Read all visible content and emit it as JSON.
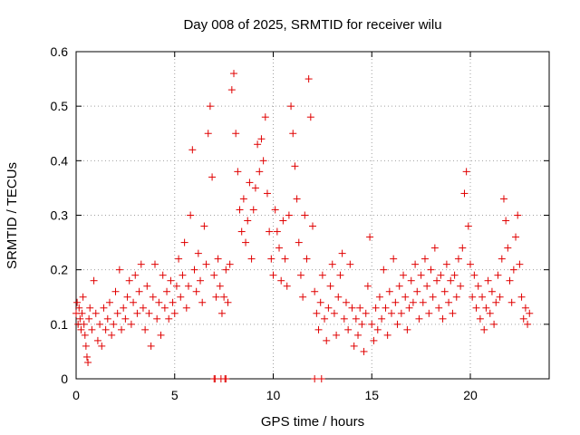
{
  "chart_data": {
    "type": "scatter",
    "title": "Day 008 of 2025, SRMTID for receiver wilu",
    "xlabel": "GPS time / hours",
    "ylabel": "SRMTID / TECUs",
    "xlim": [
      0,
      24
    ],
    "ylim": [
      0,
      0.6
    ],
    "xticks": [
      0,
      5,
      10,
      15,
      20
    ],
    "xtick_labels": [
      "0",
      "5",
      "10",
      "15",
      "20"
    ],
    "yticks": [
      0,
      0.1,
      0.2,
      0.3,
      0.4,
      0.5,
      0.6
    ],
    "ytick_labels": [
      "0",
      "0.1",
      "0.2",
      "0.3",
      "0.4",
      "0.5",
      "0.6"
    ],
    "grid": true,
    "marker": "+",
    "color": "#e00000",
    "series": [
      {
        "name": "SRMTID",
        "points": [
          [
            0.0,
            0.12
          ],
          [
            0.05,
            0.14
          ],
          [
            0.1,
            0.1
          ],
          [
            0.15,
            0.13
          ],
          [
            0.2,
            0.11
          ],
          [
            0.25,
            0.09
          ],
          [
            0.3,
            0.12
          ],
          [
            0.35,
            0.15
          ],
          [
            0.4,
            0.1
          ],
          [
            0.45,
            0.08
          ],
          [
            0.5,
            0.06
          ],
          [
            0.55,
            0.04
          ],
          [
            0.6,
            0.03
          ],
          [
            0.65,
            0.11
          ],
          [
            0.7,
            0.13
          ],
          [
            0.8,
            0.09
          ],
          [
            0.9,
            0.18
          ],
          [
            1.0,
            0.12
          ],
          [
            1.1,
            0.07
          ],
          [
            1.2,
            0.1
          ],
          [
            1.3,
            0.06
          ],
          [
            1.4,
            0.13
          ],
          [
            1.5,
            0.09
          ],
          [
            1.6,
            0.11
          ],
          [
            1.7,
            0.14
          ],
          [
            1.8,
            0.08
          ],
          [
            1.9,
            0.1
          ],
          [
            2.0,
            0.16
          ],
          [
            2.1,
            0.12
          ],
          [
            2.2,
            0.2
          ],
          [
            2.3,
            0.09
          ],
          [
            2.4,
            0.13
          ],
          [
            2.5,
            0.11
          ],
          [
            2.6,
            0.15
          ],
          [
            2.7,
            0.18
          ],
          [
            2.8,
            0.1
          ],
          [
            2.9,
            0.14
          ],
          [
            3.0,
            0.19
          ],
          [
            3.1,
            0.12
          ],
          [
            3.2,
            0.16
          ],
          [
            3.3,
            0.21
          ],
          [
            3.4,
            0.13
          ],
          [
            3.5,
            0.09
          ],
          [
            3.6,
            0.17
          ],
          [
            3.7,
            0.12
          ],
          [
            3.8,
            0.06
          ],
          [
            3.9,
            0.15
          ],
          [
            4.0,
            0.21
          ],
          [
            4.1,
            0.11
          ],
          [
            4.2,
            0.14
          ],
          [
            4.3,
            0.08
          ],
          [
            4.4,
            0.19
          ],
          [
            4.5,
            0.13
          ],
          [
            4.6,
            0.16
          ],
          [
            4.7,
            0.11
          ],
          [
            4.8,
            0.18
          ],
          [
            4.9,
            0.14
          ],
          [
            5.0,
            0.12
          ],
          [
            5.1,
            0.17
          ],
          [
            5.2,
            0.22
          ],
          [
            5.3,
            0.15
          ],
          [
            5.4,
            0.19
          ],
          [
            5.5,
            0.25
          ],
          [
            5.6,
            0.13
          ],
          [
            5.7,
            0.17
          ],
          [
            5.8,
            0.3
          ],
          [
            5.9,
            0.42
          ],
          [
            6.0,
            0.2
          ],
          [
            6.1,
            0.16
          ],
          [
            6.2,
            0.23
          ],
          [
            6.3,
            0.18
          ],
          [
            6.4,
            0.14
          ],
          [
            6.5,
            0.28
          ],
          [
            6.6,
            0.21
          ],
          [
            6.7,
            0.45
          ],
          [
            6.8,
            0.5
          ],
          [
            6.9,
            0.37
          ],
          [
            7.0,
            0.19
          ],
          [
            7.1,
            0.15
          ],
          [
            7.2,
            0.22
          ],
          [
            7.3,
            0.17
          ],
          [
            7.4,
            0.12
          ],
          [
            7.5,
            0.15
          ],
          [
            7.6,
            0.2
          ],
          [
            7.7,
            0.14
          ],
          [
            7.8,
            0.21
          ],
          [
            7.9,
            0.53
          ],
          [
            8.0,
            0.56
          ],
          [
            8.1,
            0.45
          ],
          [
            8.2,
            0.38
          ],
          [
            8.3,
            0.31
          ],
          [
            8.4,
            0.27
          ],
          [
            8.5,
            0.33
          ],
          [
            8.6,
            0.25
          ],
          [
            8.7,
            0.29
          ],
          [
            8.8,
            0.36
          ],
          [
            8.9,
            0.22
          ],
          [
            9.0,
            0.31
          ],
          [
            9.1,
            0.35
          ],
          [
            9.2,
            0.43
          ],
          [
            9.3,
            0.38
          ],
          [
            9.4,
            0.44
          ],
          [
            9.5,
            0.4
          ],
          [
            9.6,
            0.48
          ],
          [
            9.7,
            0.34
          ],
          [
            9.8,
            0.27
          ],
          [
            9.9,
            0.22
          ],
          [
            10.0,
            0.19
          ],
          [
            10.1,
            0.31
          ],
          [
            10.2,
            0.27
          ],
          [
            10.3,
            0.24
          ],
          [
            10.4,
            0.18
          ],
          [
            10.5,
            0.29
          ],
          [
            10.6,
            0.22
          ],
          [
            10.7,
            0.17
          ],
          [
            10.8,
            0.3
          ],
          [
            10.9,
            0.5
          ],
          [
            11.0,
            0.45
          ],
          [
            11.1,
            0.39
          ],
          [
            11.2,
            0.33
          ],
          [
            11.3,
            0.25
          ],
          [
            11.4,
            0.19
          ],
          [
            11.5,
            0.15
          ],
          [
            11.6,
            0.3
          ],
          [
            11.7,
            0.22
          ],
          [
            11.8,
            0.55
          ],
          [
            11.9,
            0.48
          ],
          [
            12.0,
            0.28
          ],
          [
            12.1,
            0.16
          ],
          [
            12.2,
            0.12
          ],
          [
            12.3,
            0.09
          ],
          [
            12.4,
            0.14
          ],
          [
            12.5,
            0.19
          ],
          [
            12.6,
            0.11
          ],
          [
            12.7,
            0.07
          ],
          [
            12.8,
            0.13
          ],
          [
            12.9,
            0.17
          ],
          [
            13.0,
            0.21
          ],
          [
            13.1,
            0.12
          ],
          [
            13.2,
            0.08
          ],
          [
            13.3,
            0.15
          ],
          [
            13.4,
            0.19
          ],
          [
            13.5,
            0.23
          ],
          [
            13.6,
            0.11
          ],
          [
            13.7,
            0.14
          ],
          [
            13.8,
            0.09
          ],
          [
            13.9,
            0.21
          ],
          [
            14.0,
            0.13
          ],
          [
            14.1,
            0.06
          ],
          [
            14.2,
            0.11
          ],
          [
            14.3,
            0.08
          ],
          [
            14.4,
            0.13
          ],
          [
            14.5,
            0.1
          ],
          [
            14.6,
            0.05
          ],
          [
            14.7,
            0.12
          ],
          [
            14.8,
            0.17
          ],
          [
            14.9,
            0.26
          ],
          [
            15.0,
            0.1
          ],
          [
            15.1,
            0.07
          ],
          [
            15.2,
            0.13
          ],
          [
            15.3,
            0.09
          ],
          [
            15.4,
            0.15
          ],
          [
            15.5,
            0.11
          ],
          [
            15.6,
            0.2
          ],
          [
            15.7,
            0.13
          ],
          [
            15.8,
            0.08
          ],
          [
            15.9,
            0.16
          ],
          [
            16.0,
            0.12
          ],
          [
            16.1,
            0.22
          ],
          [
            16.2,
            0.14
          ],
          [
            16.3,
            0.1
          ],
          [
            16.4,
            0.17
          ],
          [
            16.5,
            0.12
          ],
          [
            16.6,
            0.19
          ],
          [
            16.7,
            0.15
          ],
          [
            16.8,
            0.09
          ],
          [
            16.9,
            0.13
          ],
          [
            17.0,
            0.18
          ],
          [
            17.1,
            0.14
          ],
          [
            17.2,
            0.21
          ],
          [
            17.3,
            0.16
          ],
          [
            17.4,
            0.11
          ],
          [
            17.5,
            0.19
          ],
          [
            17.6,
            0.14
          ],
          [
            17.7,
            0.22
          ],
          [
            17.8,
            0.17
          ],
          [
            17.9,
            0.12
          ],
          [
            18.0,
            0.2
          ],
          [
            18.1,
            0.15
          ],
          [
            18.2,
            0.24
          ],
          [
            18.3,
            0.18
          ],
          [
            18.4,
            0.13
          ],
          [
            18.5,
            0.19
          ],
          [
            18.6,
            0.11
          ],
          [
            18.7,
            0.16
          ],
          [
            18.8,
            0.21
          ],
          [
            18.9,
            0.14
          ],
          [
            19.0,
            0.18
          ],
          [
            19.1,
            0.12
          ],
          [
            19.2,
            0.19
          ],
          [
            19.3,
            0.15
          ],
          [
            19.4,
            0.22
          ],
          [
            19.5,
            0.17
          ],
          [
            19.6,
            0.24
          ],
          [
            19.7,
            0.34
          ],
          [
            19.8,
            0.38
          ],
          [
            19.9,
            0.28
          ],
          [
            20.0,
            0.21
          ],
          [
            20.1,
            0.15
          ],
          [
            20.2,
            0.19
          ],
          [
            20.3,
            0.13
          ],
          [
            20.4,
            0.17
          ],
          [
            20.5,
            0.11
          ],
          [
            20.6,
            0.15
          ],
          [
            20.7,
            0.09
          ],
          [
            20.8,
            0.13
          ],
          [
            20.9,
            0.18
          ],
          [
            21.0,
            0.12
          ],
          [
            21.1,
            0.16
          ],
          [
            21.2,
            0.1
          ],
          [
            21.3,
            0.14
          ],
          [
            21.4,
            0.19
          ],
          [
            21.5,
            0.15
          ],
          [
            21.6,
            0.22
          ],
          [
            21.7,
            0.33
          ],
          [
            21.8,
            0.29
          ],
          [
            21.9,
            0.24
          ],
          [
            22.0,
            0.18
          ],
          [
            22.1,
            0.14
          ],
          [
            22.2,
            0.2
          ],
          [
            22.3,
            0.26
          ],
          [
            22.4,
            0.3
          ],
          [
            22.5,
            0.21
          ],
          [
            22.6,
            0.15
          ],
          [
            22.7,
            0.11
          ],
          [
            22.8,
            0.13
          ],
          [
            22.9,
            0.1
          ],
          [
            23.0,
            0.12
          ]
        ]
      }
    ],
    "zero_points": [
      7.0,
      7.05,
      7.35,
      7.55,
      7.6,
      12.1,
      12.45
    ]
  }
}
